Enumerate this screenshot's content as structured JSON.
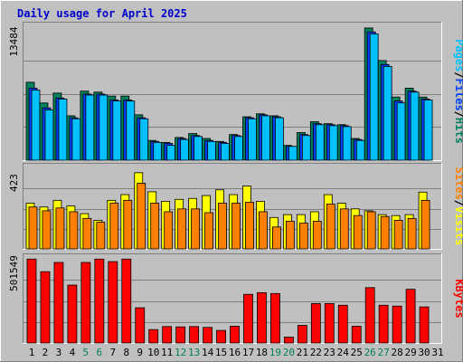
{
  "title": "Daily usage for April 2025",
  "colors": {
    "background": "#c0c0c0",
    "plot": "#c0c0c0",
    "title": "#0000cc",
    "hits": "#00805c",
    "files": "#0040ff",
    "pages": "#00c0ff",
    "visits": "#ffff00",
    "sites": "#ff8000",
    "kbytes": "#ff0000",
    "weekend_day": "#00805c",
    "weekday": "#000000",
    "grid": "#808080"
  },
  "chart_data": [
    {
      "type": "bar",
      "panel": "hits-files-pages",
      "y_max_label": "13484",
      "ylim": [
        0,
        13484
      ],
      "categories": [
        "1",
        "2",
        "3",
        "4",
        "5",
        "6",
        "7",
        "8",
        "9",
        "10",
        "11",
        "12",
        "13",
        "14",
        "15",
        "16",
        "17",
        "18",
        "19",
        "20",
        "21",
        "22",
        "23",
        "24",
        "25",
        "26",
        "27",
        "28",
        "29",
        "30",
        "31"
      ],
      "weekend": [
        5,
        6,
        12,
        13,
        19,
        20,
        26,
        27
      ],
      "series": [
        {
          "name": "Hits",
          "values": [
            7900,
            5800,
            6800,
            4500,
            7000,
            6900,
            6500,
            6500,
            4600,
            2000,
            1800,
            2300,
            2700,
            2200,
            1900,
            2600,
            4400,
            4700,
            4500,
            1500,
            2800,
            3900,
            3700,
            3600,
            2200,
            13400,
            10100,
            6400,
            7300,
            6400,
            null
          ]
        },
        {
          "name": "Files",
          "values": [
            7300,
            5300,
            6300,
            4300,
            6700,
            6700,
            6100,
            6100,
            4300,
            1900,
            1700,
            2200,
            2500,
            2000,
            1800,
            2500,
            4300,
            4600,
            4400,
            1400,
            2600,
            3700,
            3600,
            3500,
            2100,
            13000,
            9700,
            6000,
            7000,
            6200,
            null
          ]
        },
        {
          "name": "Pages",
          "values": [
            7100,
            5100,
            6200,
            4200,
            6600,
            6600,
            6000,
            6000,
            4200,
            1800,
            1500,
            2100,
            2400,
            1900,
            1700,
            2400,
            4200,
            4500,
            4300,
            1400,
            2500,
            3600,
            3500,
            3400,
            2000,
            12800,
            9500,
            5800,
            6900,
            6100,
            null
          ]
        }
      ],
      "legend": [
        "Pages",
        "Files",
        "Hits"
      ]
    },
    {
      "type": "bar",
      "panel": "visits-sites",
      "y_max_label": "423",
      "ylim": [
        0,
        423
      ],
      "categories": [
        "1",
        "2",
        "3",
        "4",
        "5",
        "6",
        "7",
        "8",
        "9",
        "10",
        "11",
        "12",
        "13",
        "14",
        "15",
        "16",
        "17",
        "18",
        "19",
        "20",
        "21",
        "22",
        "23",
        "24",
        "25",
        "26",
        "27",
        "28",
        "29",
        "30",
        "31"
      ],
      "series": [
        {
          "name": "Visits",
          "values": [
            240,
            220,
            255,
            225,
            185,
            150,
            255,
            285,
            400,
            300,
            250,
            260,
            265,
            280,
            310,
            285,
            330,
            250,
            165,
            180,
            180,
            195,
            285,
            240,
            210,
            200,
            180,
            175,
            180,
            298,
            null
          ]
        },
        {
          "name": "Sites",
          "values": [
            220,
            200,
            215,
            195,
            160,
            140,
            240,
            255,
            345,
            240,
            195,
            210,
            210,
            190,
            240,
            240,
            245,
            195,
            115,
            145,
            135,
            145,
            235,
            210,
            175,
            195,
            170,
            150,
            160,
            255,
            null
          ]
        }
      ],
      "legend": [
        "Sites",
        "Visits"
      ]
    },
    {
      "type": "bar",
      "panel": "kbytes",
      "y_max_label": "501549",
      "ylim": [
        0,
        501549
      ],
      "categories": [
        "1",
        "2",
        "3",
        "4",
        "5",
        "6",
        "7",
        "8",
        "9",
        "10",
        "11",
        "12",
        "13",
        "14",
        "15",
        "16",
        "17",
        "18",
        "19",
        "20",
        "21",
        "22",
        "23",
        "24",
        "25",
        "26",
        "27",
        "28",
        "29",
        "30",
        "31"
      ],
      "series": [
        {
          "name": "KBytes",
          "values": [
            500000,
            425000,
            480000,
            345000,
            480000,
            500000,
            485000,
            500000,
            210000,
            80000,
            98000,
            96000,
            98000,
            93000,
            75000,
            100000,
            290000,
            300000,
            295000,
            35000,
            105000,
            235000,
            235000,
            225000,
            100000,
            330000,
            225000,
            220000,
            320000,
            215000,
            null
          ]
        }
      ],
      "legend": [
        "KBytes"
      ]
    }
  ]
}
